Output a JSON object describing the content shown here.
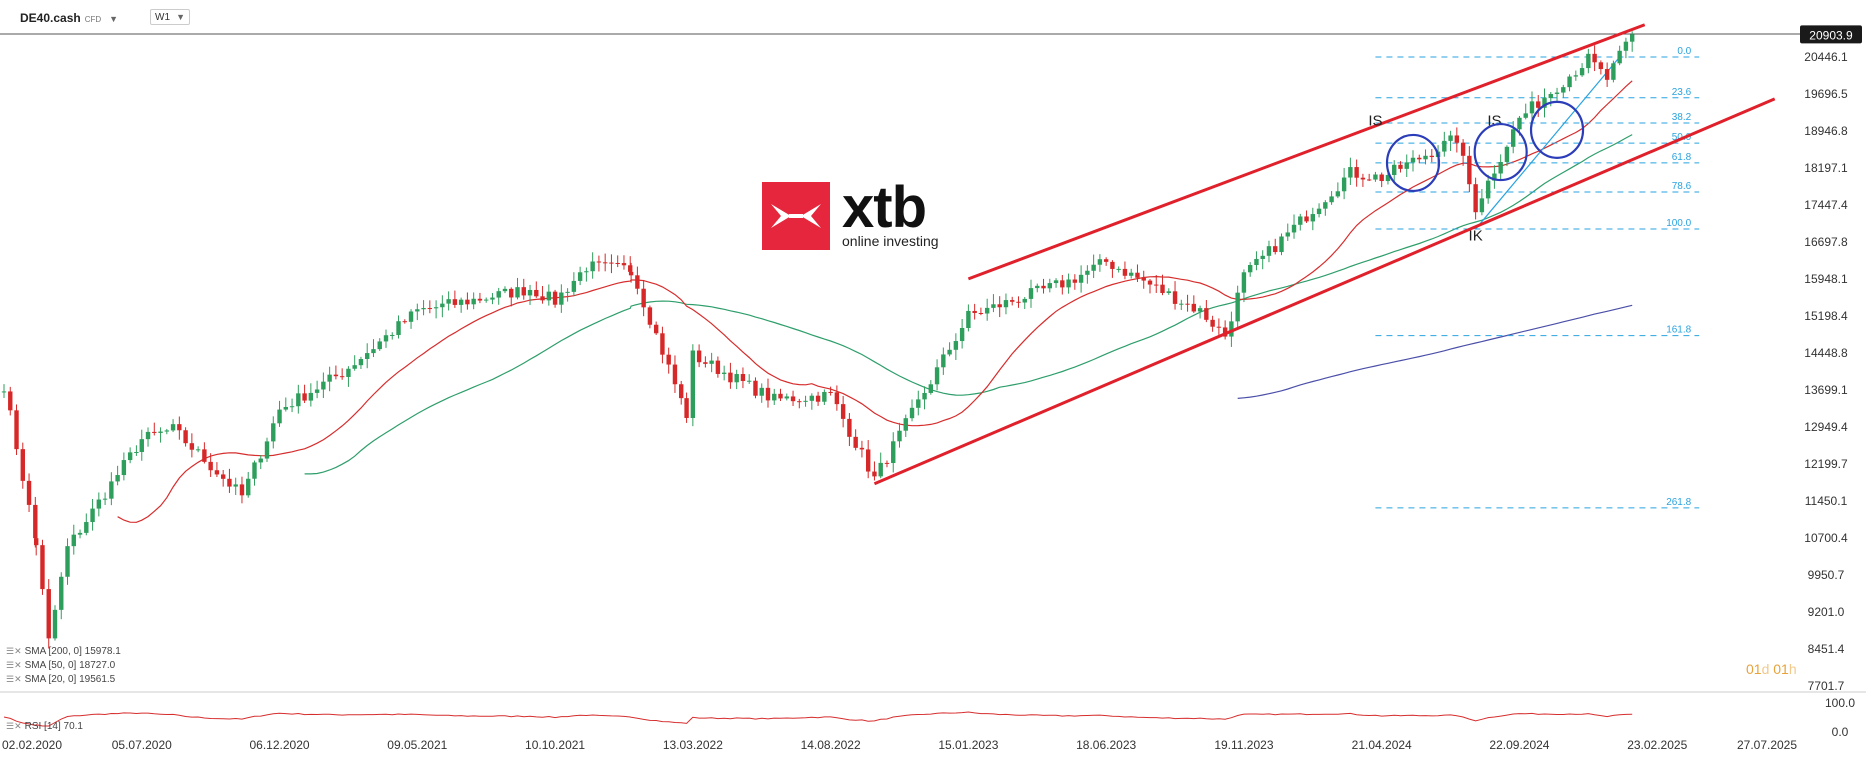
{
  "toolbar": {
    "symbol": "DE40.cash",
    "symbol_tag": "CFD",
    "timeframe": "W1"
  },
  "indicators": [
    {
      "label": "SMA [200, 0] 15978.1",
      "color": "#4b4fa8"
    },
    {
      "label": "SMA [50, 0] 18727.0",
      "color": "#2e9e6b"
    },
    {
      "label": "SMA [20, 0] 19561.5",
      "color": "#d62d2d"
    }
  ],
  "rsi_label": "RSI [14] 70.1",
  "timer": {
    "days": "01",
    "d": "d",
    "hours": "01",
    "h": "h"
  },
  "logo": {
    "name": "xtb",
    "tagline": "online investing"
  },
  "colors": {
    "up": "#2e9e5c",
    "down": "#d62828",
    "channel": "#e0202a",
    "fib": "#29a3e0",
    "sma20": "#d62d2d",
    "sma50": "#2e9e6b",
    "sma200": "#4b4fa8",
    "circle": "#2b3db8"
  },
  "chart_data": {
    "type": "candlestick",
    "title": "",
    "price_axis_ticks": [
      "20446.1",
      "19696.5",
      "18946.8",
      "18197.1",
      "17447.4",
      "16697.8",
      "15948.1",
      "15198.4",
      "14448.8",
      "13699.1",
      "12949.4",
      "12199.7",
      "11450.1",
      "10700.4",
      "9950.7",
      "9201.0",
      "8451.4",
      "7701.7"
    ],
    "last_price": "20903.9",
    "rsi_axis_ticks": [
      "100.0",
      "0.0"
    ],
    "date_axis_ticks": [
      "02.02.2020",
      "05.07.2020",
      "06.12.2020",
      "09.05.2021",
      "10.10.2021",
      "13.03.2022",
      "14.08.2022",
      "15.01.2023",
      "18.06.2023",
      "19.11.2023",
      "21.04.2024",
      "22.09.2024",
      "23.02.2025",
      "27.07.2025"
    ],
    "ylim": [
      7701.7,
      21100
    ],
    "price_path": [
      [
        "02.02.2020",
        13800
      ],
      [
        "09.03.2020",
        10600
      ],
      [
        "23.03.2020",
        8600
      ],
      [
        "13.04.2020",
        10500
      ],
      [
        "05.07.2020",
        12700
      ],
      [
        "09.08.2020",
        12900
      ],
      [
        "25.10.2020",
        11550
      ],
      [
        "06.12.2020",
        13300
      ],
      [
        "14.02.2021",
        14050
      ],
      [
        "09.05.2021",
        15300
      ],
      [
        "12.09.2021",
        15750
      ],
      [
        "10.10.2021",
        15500
      ],
      [
        "14.11.2021",
        16200
      ],
      [
        "03.01.2022",
        16150
      ],
      [
        "06.03.2022",
        13200
      ],
      [
        "13.03.2022",
        14400
      ],
      [
        "12.06.2022",
        13500
      ],
      [
        "14.08.2022",
        13600
      ],
      [
        "02.10.2022",
        11900
      ],
      [
        "15.01.2023",
        15200
      ],
      [
        "07.05.2023",
        15900
      ],
      [
        "18.06.2023",
        16300
      ],
      [
        "01.10.2023",
        15300
      ],
      [
        "29.10.2023",
        14800
      ],
      [
        "19.11.2023",
        16000
      ],
      [
        "17.03.2024",
        18100
      ],
      [
        "21.04.2024",
        18000
      ],
      [
        "14.07.2024",
        18800
      ],
      [
        "04.08.2024",
        17400
      ],
      [
        "22.09.2024",
        19200
      ],
      [
        "08.12.2024",
        20400
      ],
      [
        "29.12.2024",
        20000
      ],
      [
        "26.01.2025",
        20904
      ]
    ],
    "sma200_label": "SMA [200, 0] 15978.1",
    "sma50_label": "SMA [50, 0] 18727.0",
    "sma20_label": "SMA [20, 0] 19561.5",
    "fibonacci": [
      {
        "level": "0.0",
        "price": 20446.1
      },
      {
        "level": "23.6",
        "price": 19620
      },
      {
        "level": "38.2",
        "price": 19110
      },
      {
        "level": "50.0",
        "price": 18700
      },
      {
        "level": "61.8",
        "price": 18300
      },
      {
        "level": "78.6",
        "price": 17710
      },
      {
        "level": "100.0",
        "price": 16960
      },
      {
        "level": "161.8",
        "price": 14800
      },
      {
        "level": "261.8",
        "price": 11310
      }
    ],
    "channel": {
      "upper": [
        [
          "15.01.2023",
          15950
        ],
        [
          "09.02.2025",
          21100
        ]
      ],
      "lower": [
        [
          "02.10.2022",
          11800
        ],
        [
          "09.02.2025",
          18950
        ]
      ]
    },
    "annotations": [
      {
        "text": "IS",
        "date": "14.04.2024",
        "price": 19060
      },
      {
        "text": "IS",
        "date": "25.08.2024",
        "price": 19060
      },
      {
        "text": "IK",
        "date": "04.08.2024",
        "price": 16730
      }
    ],
    "circles": [
      {
        "date": "26.05.2024",
        "price": 18300
      },
      {
        "date": "01.09.2024",
        "price": 18520
      },
      {
        "date": "03.11.2024",
        "price": 18970
      }
    ]
  }
}
